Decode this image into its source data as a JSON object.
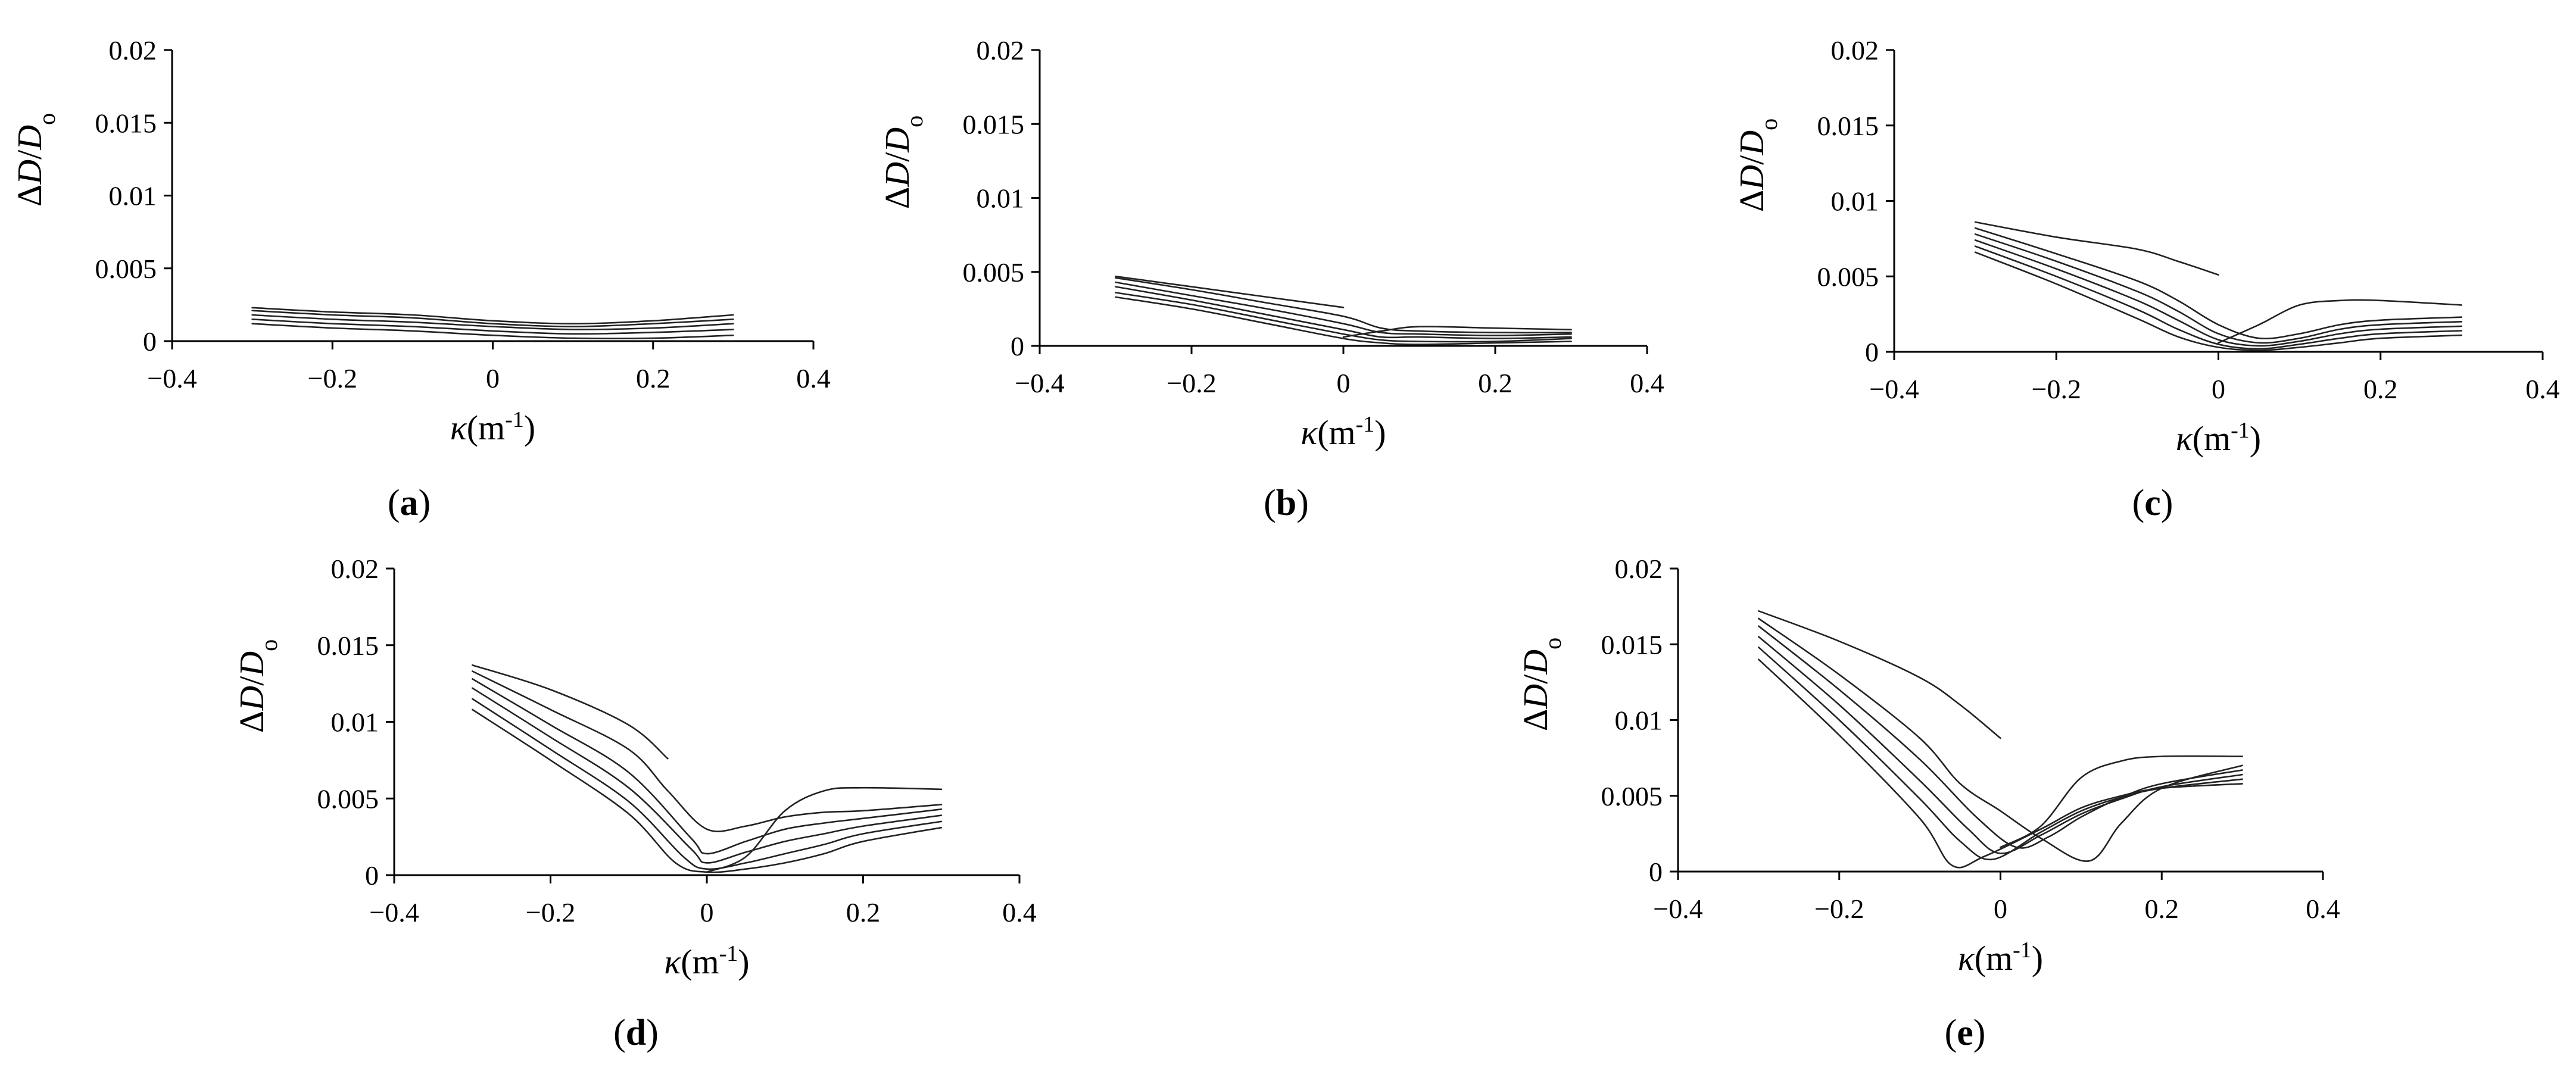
{
  "figure": {
    "panels": [
      {
        "id": "a",
        "label": "(a)"
      },
      {
        "id": "b",
        "label": "(b)"
      },
      {
        "id": "c",
        "label": "(c)"
      },
      {
        "id": "d",
        "label": "(d)"
      },
      {
        "id": "e",
        "label": "(e)"
      }
    ]
  },
  "chart_data": [
    {
      "panel": "a",
      "type": "line",
      "xlabel": "κ(m-1)",
      "ylabel": "ΔD/Do",
      "xlim": [
        -0.4,
        0.4
      ],
      "ylim": [
        0,
        0.02
      ],
      "xticks": [
        -0.4,
        -0.2,
        0,
        0.2,
        0.4
      ],
      "xtick_labels": [
        "−0.4",
        "−0.2",
        "0",
        "0.2",
        "0.4"
      ],
      "yticks": [
        0,
        0.005,
        0.01,
        0.015,
        0.02
      ],
      "ytick_labels": [
        "0",
        "0.005",
        "0.01",
        "0.015",
        "0.02"
      ],
      "grid": false,
      "series": [
        {
          "x": [
            -0.3,
            -0.2,
            -0.1,
            0,
            0.1,
            0.2,
            0.3
          ],
          "y": [
            0.0012,
            0.0009,
            0.0007,
            0.0004,
            0.0002,
            0.0002,
            0.0004
          ]
        },
        {
          "x": [
            -0.3,
            -0.2,
            -0.1,
            0,
            0.1,
            0.2,
            0.3
          ],
          "y": [
            0.0015,
            0.0012,
            0.001,
            0.0007,
            0.0005,
            0.0006,
            0.0008
          ]
        },
        {
          "x": [
            -0.3,
            -0.2,
            -0.1,
            0,
            0.1,
            0.2,
            0.3
          ],
          "y": [
            0.0018,
            0.0015,
            0.0013,
            0.001,
            0.0008,
            0.0009,
            0.0012
          ]
        },
        {
          "x": [
            -0.3,
            -0.2,
            -0.1,
            0,
            0.1,
            0.2,
            0.3
          ],
          "y": [
            0.0021,
            0.0018,
            0.0016,
            0.0012,
            0.001,
            0.0012,
            0.0015
          ]
        },
        {
          "x": [
            -0.3,
            -0.2,
            -0.1,
            0,
            0.1,
            0.2,
            0.3
          ],
          "y": [
            0.0023,
            0.002,
            0.0018,
            0.0014,
            0.0012,
            0.0014,
            0.0018
          ]
        }
      ]
    },
    {
      "panel": "b",
      "type": "line",
      "xlabel": "κ(m-1)",
      "ylabel": "ΔD/Do",
      "xlim": [
        -0.4,
        0.4
      ],
      "ylim": [
        0,
        0.02
      ],
      "xticks": [
        -0.4,
        -0.2,
        0,
        0.2,
        0.4
      ],
      "xtick_labels": [
        "−0.4",
        "−0.2",
        "0",
        "0.2",
        "0.4"
      ],
      "yticks": [
        0,
        0.005,
        0.01,
        0.015,
        0.02
      ],
      "ytick_labels": [
        "0",
        "0.005",
        "0.01",
        "0.015",
        "0.02"
      ],
      "grid": false,
      "series": [
        {
          "x": [
            -0.3,
            -0.2,
            -0.1,
            0,
            0.05,
            0.1,
            0.2,
            0.3
          ],
          "y": [
            0.0033,
            0.0025,
            0.0015,
            0.0005,
            0.0002,
            0.0001,
            0.0002,
            0.0003
          ]
        },
        {
          "x": [
            -0.3,
            -0.2,
            -0.1,
            0,
            0.05,
            0.1,
            0.2,
            0.3
          ],
          "y": [
            0.0036,
            0.0028,
            0.0018,
            0.0008,
            0.0004,
            0.0003,
            0.0003,
            0.0005
          ]
        },
        {
          "x": [
            -0.3,
            -0.2,
            -0.1,
            0,
            0.05,
            0.1,
            0.2,
            0.3
          ],
          "y": [
            0.004,
            0.0031,
            0.0021,
            0.0011,
            0.0006,
            0.0006,
            0.0005,
            0.0006
          ]
        },
        {
          "x": [
            -0.3,
            -0.2,
            -0.1,
            0,
            0.05,
            0.1,
            0.2,
            0.3
          ],
          "y": [
            0.0043,
            0.0034,
            0.0025,
            0.0015,
            0.0009,
            0.0008,
            0.0007,
            0.0008
          ]
        },
        {
          "x": [
            -0.3,
            -0.2,
            -0.1,
            0,
            0.05,
            0.1,
            0.2,
            0.3
          ],
          "y": [
            0.0046,
            0.0038,
            0.0029,
            0.002,
            0.0012,
            0.001,
            0.0009,
            0.0009
          ]
        },
        {
          "x": [
            -0.3,
            -0.2,
            -0.1,
            0
          ],
          "y": [
            0.0047,
            0.004,
            0.0033,
            0.0026
          ]
        },
        {
          "x": [
            0,
            0.05,
            0.1,
            0.2,
            0.3
          ],
          "y": [
            0.0006,
            0.001,
            0.0013,
            0.0012,
            0.0011
          ]
        }
      ]
    },
    {
      "panel": "c",
      "type": "line",
      "xlabel": "κ(m-1)",
      "ylabel": "ΔD/Do",
      "xlim": [
        -0.4,
        0.4
      ],
      "ylim": [
        0,
        0.02
      ],
      "xticks": [
        -0.4,
        -0.2,
        0,
        0.2,
        0.4
      ],
      "xtick_labels": [
        "−0.4",
        "−0.2",
        "0",
        "0.2",
        "0.4"
      ],
      "yticks": [
        0,
        0.005,
        0.01,
        0.015,
        0.02
      ],
      "ytick_labels": [
        "0",
        "0.005",
        "0.01",
        "0.015",
        "0.02"
      ],
      "grid": false,
      "series": [
        {
          "x": [
            -0.3,
            -0.2,
            -0.1,
            -0.05,
            0,
            0.05,
            0.1,
            0.15,
            0.2,
            0.3
          ],
          "y": [
            0.0066,
            0.0045,
            0.0022,
            0.001,
            0.0003,
            0.0001,
            0.0003,
            0.0006,
            0.0009,
            0.0011
          ]
        },
        {
          "x": [
            -0.3,
            -0.2,
            -0.1,
            -0.05,
            0,
            0.05,
            0.1,
            0.15,
            0.2,
            0.3
          ],
          "y": [
            0.007,
            0.005,
            0.0028,
            0.0015,
            0.0005,
            0.0002,
            0.0005,
            0.0009,
            0.0012,
            0.0014
          ]
        },
        {
          "x": [
            -0.3,
            -0.2,
            -0.1,
            -0.05,
            0,
            0.05,
            0.1,
            0.15,
            0.2,
            0.3
          ],
          "y": [
            0.0074,
            0.0055,
            0.0034,
            0.0021,
            0.0008,
            0.0004,
            0.0007,
            0.0012,
            0.0015,
            0.0017
          ]
        },
        {
          "x": [
            -0.3,
            -0.2,
            -0.1,
            -0.05,
            0,
            0.05,
            0.1,
            0.15,
            0.2,
            0.3
          ],
          "y": [
            0.0078,
            0.006,
            0.004,
            0.0027,
            0.0012,
            0.0006,
            0.0009,
            0.0015,
            0.0018,
            0.002
          ]
        },
        {
          "x": [
            -0.3,
            -0.2,
            -0.1,
            -0.05,
            0,
            0.05,
            0.1,
            0.15,
            0.2,
            0.3
          ],
          "y": [
            0.0082,
            0.0065,
            0.0047,
            0.0034,
            0.0018,
            0.0009,
            0.0012,
            0.0018,
            0.0021,
            0.0023
          ]
        },
        {
          "x": [
            -0.3,
            -0.2,
            -0.1,
            -0.05,
            0
          ],
          "y": [
            0.0086,
            0.0076,
            0.0068,
            0.006,
            0.0051
          ]
        },
        {
          "x": [
            0,
            0.05,
            0.1,
            0.15,
            0.2,
            0.3
          ],
          "y": [
            0.0006,
            0.0018,
            0.0031,
            0.0034,
            0.0034,
            0.0031
          ]
        }
      ]
    },
    {
      "panel": "d",
      "type": "line",
      "xlabel": "κ(m-1)",
      "ylabel": "ΔD/Do",
      "xlim": [
        -0.4,
        0.4
      ],
      "ylim": [
        0,
        0.02
      ],
      "xticks": [
        -0.4,
        -0.2,
        0,
        0.2,
        0.4
      ],
      "xtick_labels": [
        "−0.4",
        "−0.2",
        "0",
        "0.2",
        "0.4"
      ],
      "yticks": [
        0,
        0.005,
        0.01,
        0.015,
        0.02
      ],
      "ytick_labels": [
        "0",
        "0.005",
        "0.01",
        "0.015",
        "0.02"
      ],
      "grid": false,
      "series": [
        {
          "x": [
            -0.3,
            -0.2,
            -0.1,
            -0.04,
            0,
            0.05,
            0.1,
            0.15,
            0.2,
            0.3
          ],
          "y": [
            0.0108,
            0.0075,
            0.004,
            0.0008,
            0.0002,
            0.0004,
            0.0008,
            0.0014,
            0.0022,
            0.0031
          ]
        },
        {
          "x": [
            -0.3,
            -0.2,
            -0.1,
            -0.03,
            0,
            0.05,
            0.1,
            0.15,
            0.2,
            0.3
          ],
          "y": [
            0.0115,
            0.0082,
            0.0048,
            0.0012,
            0.0004,
            0.0008,
            0.0014,
            0.002,
            0.0027,
            0.0035
          ]
        },
        {
          "x": [
            -0.3,
            -0.2,
            -0.1,
            -0.02,
            0,
            0.05,
            0.1,
            0.15,
            0.2,
            0.3
          ],
          "y": [
            0.0122,
            0.009,
            0.0057,
            0.0017,
            0.0008,
            0.0015,
            0.0022,
            0.0027,
            0.0032,
            0.0039
          ]
        },
        {
          "x": [
            -0.3,
            -0.2,
            -0.1,
            -0.02,
            0,
            0.05,
            0.1,
            0.15,
            0.2,
            0.3
          ],
          "y": [
            0.0128,
            0.0098,
            0.0067,
            0.0024,
            0.0014,
            0.0022,
            0.003,
            0.0034,
            0.0037,
            0.0043
          ]
        },
        {
          "x": [
            -0.3,
            -0.2,
            -0.1,
            -0.05,
            0,
            0.05,
            0.1,
            0.15,
            0.2,
            0.3
          ],
          "y": [
            0.0133,
            0.0108,
            0.0082,
            0.0055,
            0.003,
            0.0032,
            0.0038,
            0.0041,
            0.0042,
            0.0046
          ]
        },
        {
          "x": [
            -0.3,
            -0.2,
            -0.1,
            -0.05
          ],
          "y": [
            0.0137,
            0.0121,
            0.0098,
            0.0076
          ]
        },
        {
          "x": [
            0,
            0.05,
            0.1,
            0.15,
            0.2,
            0.3
          ],
          "y": [
            0.0002,
            0.0012,
            0.0042,
            0.0055,
            0.0057,
            0.0056
          ]
        }
      ]
    },
    {
      "panel": "e",
      "type": "line",
      "xlabel": "κ(m-1)",
      "ylabel": "ΔD/Do",
      "xlim": [
        -0.4,
        0.4
      ],
      "ylim": [
        0,
        0.02
      ],
      "xticks": [
        -0.4,
        -0.2,
        0,
        0.2,
        0.4
      ],
      "xtick_labels": [
        "−0.4",
        "−0.2",
        "0",
        "0.2",
        "0.4"
      ],
      "yticks": [
        0,
        0.005,
        0.01,
        0.015,
        0.02
      ],
      "ytick_labels": [
        "0",
        "0.005",
        "0.01",
        "0.015",
        "0.02"
      ],
      "grid": false,
      "series": [
        {
          "x": [
            -0.3,
            -0.2,
            -0.1,
            -0.06,
            -0.02,
            0.05,
            0.1,
            0.15,
            0.2,
            0.3
          ],
          "y": [
            0.014,
            0.009,
            0.0035,
            0.0004,
            0.001,
            0.0028,
            0.0042,
            0.005,
            0.0055,
            0.0058
          ]
        },
        {
          "x": [
            -0.3,
            -0.2,
            -0.1,
            -0.05,
            -0.01,
            0.05,
            0.1,
            0.15,
            0.2,
            0.3
          ],
          "y": [
            0.0148,
            0.01,
            0.0048,
            0.002,
            0.0008,
            0.0026,
            0.004,
            0.0049,
            0.0055,
            0.0061
          ]
        },
        {
          "x": [
            -0.3,
            -0.2,
            -0.1,
            -0.04,
            0,
            0.05,
            0.1,
            0.15,
            0.2,
            0.3
          ],
          "y": [
            0.0155,
            0.011,
            0.006,
            0.0028,
            0.0012,
            0.0024,
            0.0038,
            0.0048,
            0.0056,
            0.0064
          ]
        },
        {
          "x": [
            -0.3,
            -0.2,
            -0.1,
            -0.03,
            0.02,
            0.06,
            0.1,
            0.15,
            0.2,
            0.3
          ],
          "y": [
            0.0162,
            0.012,
            0.0074,
            0.0036,
            0.0016,
            0.0023,
            0.0036,
            0.0049,
            0.0058,
            0.0067
          ]
        },
        {
          "x": [
            -0.3,
            -0.2,
            -0.1,
            -0.05,
            0,
            0.05,
            0.11,
            0.15,
            0.2,
            0.3
          ],
          "y": [
            0.0167,
            0.013,
            0.0088,
            0.0058,
            0.004,
            0.0022,
            0.0007,
            0.0032,
            0.0055,
            0.007
          ]
        },
        {
          "x": [
            -0.3,
            -0.2,
            -0.1,
            -0.05,
            0
          ],
          "y": [
            0.0172,
            0.0152,
            0.0128,
            0.011,
            0.0088
          ]
        },
        {
          "x": [
            0,
            0.05,
            0.1,
            0.15,
            0.2,
            0.3
          ],
          "y": [
            0.0016,
            0.003,
            0.0062,
            0.0073,
            0.0076,
            0.0076
          ]
        }
      ]
    }
  ]
}
